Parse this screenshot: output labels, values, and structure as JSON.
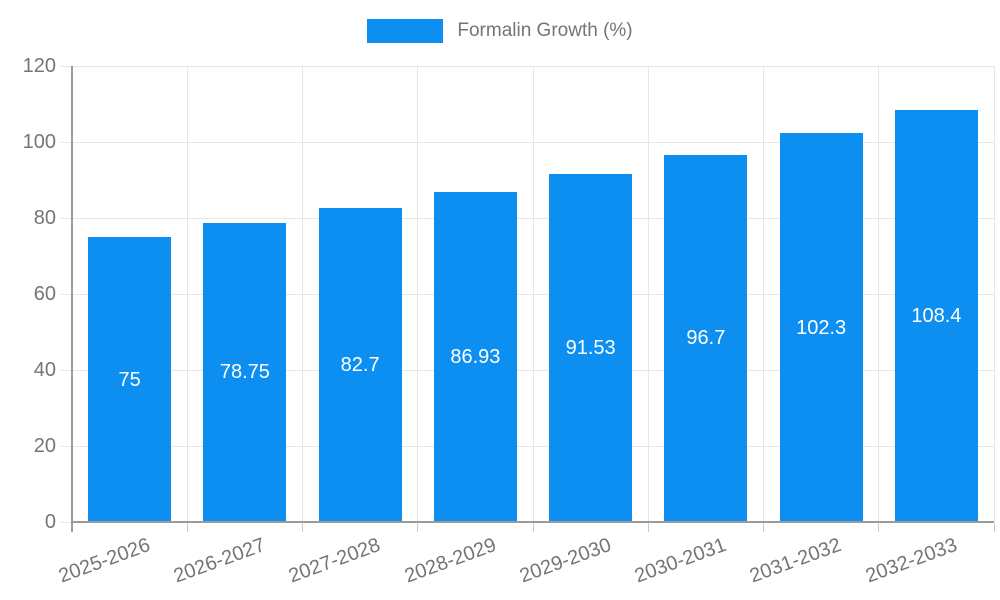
{
  "legend": {
    "label": "Formalin Growth (%)"
  },
  "colors": {
    "bar": "#0d8ff2",
    "grid": "#e6e6e6",
    "axis": "#9b9b9b",
    "tick": "#cccccc",
    "text": "#757575",
    "value_text": "#ffffff",
    "background": "#ffffff"
  },
  "chart_data": {
    "type": "bar",
    "title": "",
    "legend": "Formalin Growth (%)",
    "legend_position": "top-center",
    "categories": [
      "2025-2026",
      "2026-2027",
      "2027-2028",
      "2028-2029",
      "2029-2030",
      "2030-2031",
      "2031-2032",
      "2032-2033"
    ],
    "values": [
      75,
      78.75,
      82.7,
      86.93,
      91.53,
      96.7,
      102.3,
      108.4
    ],
    "value_labels": [
      "75",
      "78.75",
      "82.7",
      "86.93",
      "91.53",
      "96.7",
      "102.3",
      "108.4"
    ],
    "xlabel": "",
    "ylabel": "",
    "ylim": [
      0,
      120
    ],
    "yticks": [
      0,
      20,
      40,
      60,
      80,
      100,
      120
    ],
    "grid": true,
    "value_label_position": "middle-of-bar",
    "x_label_rotation_deg": -20
  }
}
